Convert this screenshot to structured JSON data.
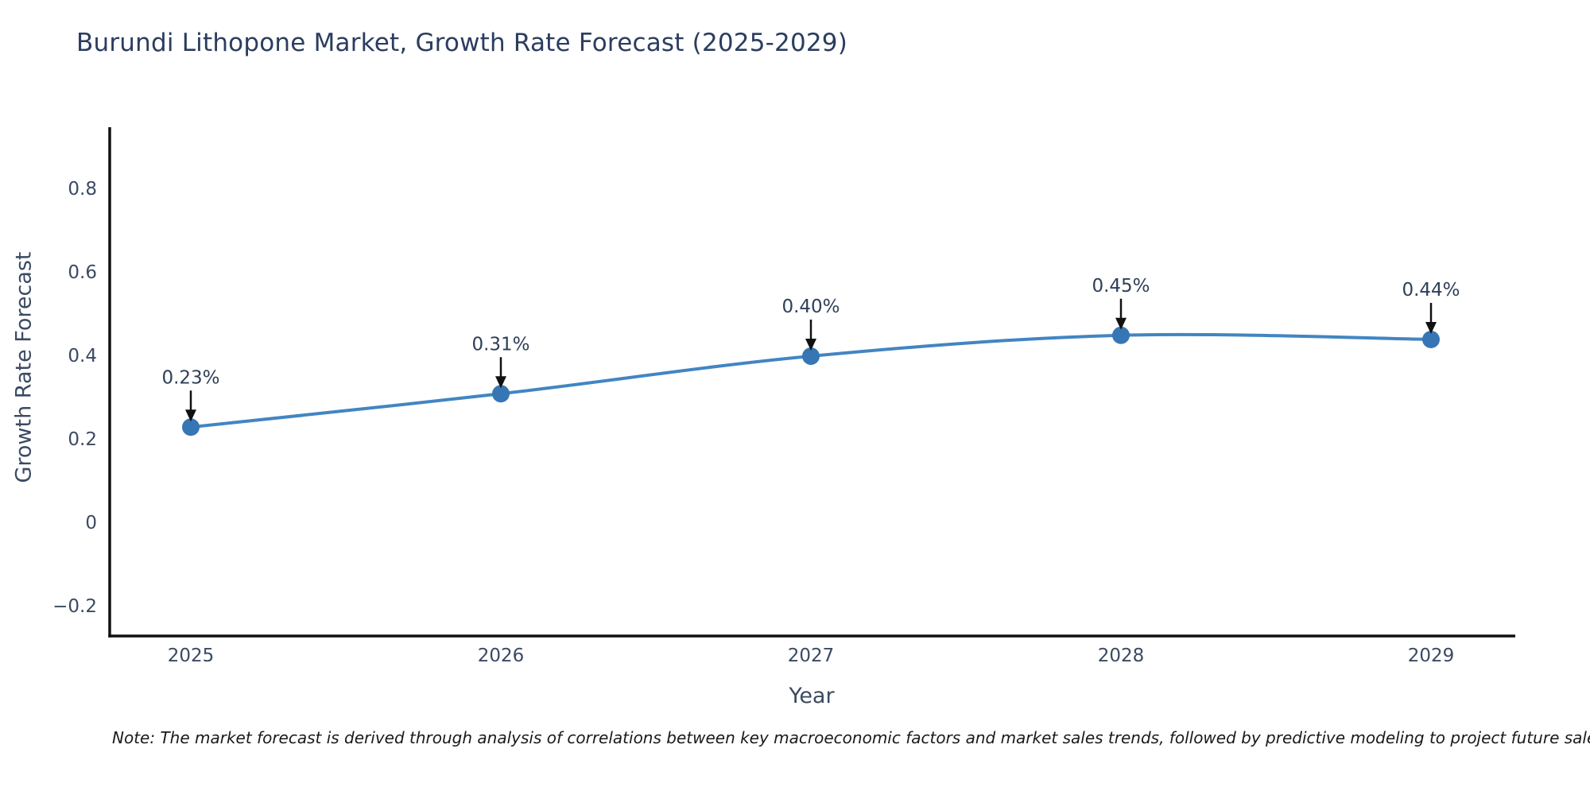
{
  "chart_data": {
    "type": "line",
    "title": "Burundi Lithopone Market, Growth Rate Forecast (2025-2029)",
    "xlabel": "Year",
    "ylabel": "Growth Rate Forecast",
    "x": [
      2025,
      2026,
      2027,
      2028,
      2029
    ],
    "series": [
      {
        "name": "Growth Rate Forecast",
        "values": [
          0.23,
          0.31,
          0.4,
          0.45,
          0.44
        ],
        "point_labels": [
          "0.23%",
          "0.31%",
          "0.40%",
          "0.45%",
          "0.44%"
        ]
      }
    ],
    "xlim": [
      2024.74,
      2029.27
    ],
    "ylim": [
      -0.27,
      0.95
    ],
    "yticks": [
      -0.2,
      0,
      0.2,
      0.4,
      0.6,
      0.8
    ],
    "ytick_labels": [
      "−0.2",
      "0",
      "0.2",
      "0.4",
      "0.6",
      "0.8"
    ],
    "xtick_labels": [
      "2025",
      "2026",
      "2027",
      "2028",
      "2029"
    ],
    "grid": false,
    "legend": false,
    "line_shape": "spline",
    "annotation_arrows": true,
    "colors": {
      "line": "#4285c2",
      "marker": "#3776b5",
      "axis": "#111111",
      "tick_text": "#3b4a62",
      "annotation_text": "#2f3f58",
      "arrow": "#111111",
      "title_text": "#2b3d5f"
    },
    "note": "Note: The market forecast is derived through analysis of correlations between key macroeconomic factors and market sales trends, followed by predictive modeling to project future sales."
  }
}
